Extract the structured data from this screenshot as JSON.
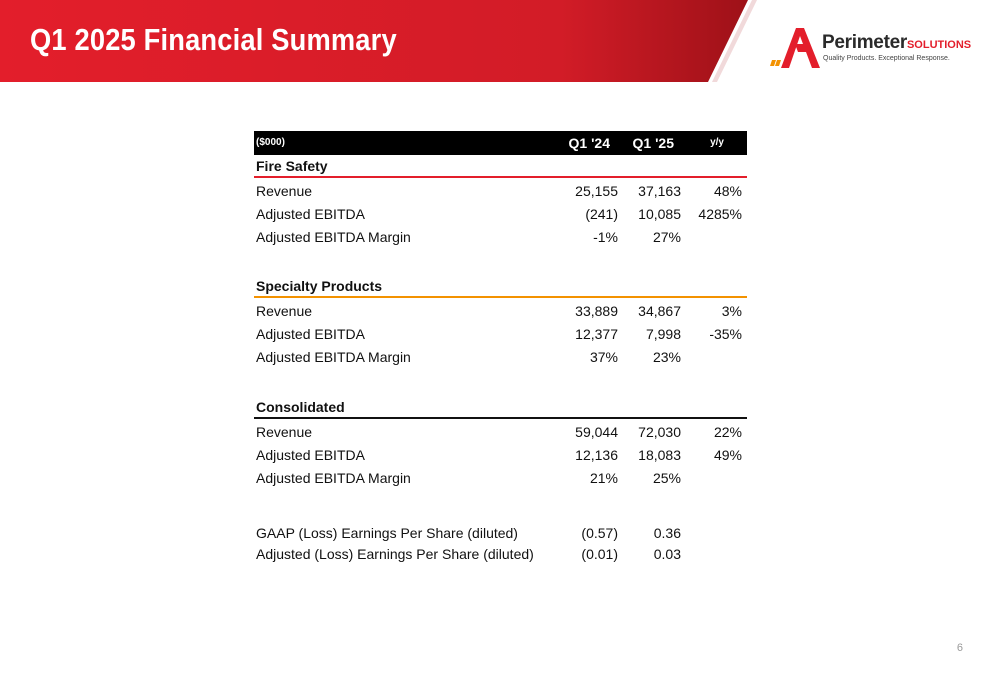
{
  "header": {
    "title": "Q1 2025 Financial Summary",
    "banner_color": "#e31e2b"
  },
  "logo": {
    "name": "Perimeter",
    "suffix": "SOLUTIONS",
    "tagline": "Quality Products. Exceptional Response.",
    "icon": "perimeter-logo-mark",
    "accent": "#e31e2b",
    "accent2": "#f39200"
  },
  "table": {
    "headers": {
      "unit": "($000)",
      "col1": "Q1 '24",
      "col2": "Q1 '25",
      "col3": "y/y"
    },
    "sections": [
      {
        "name": "Fire Safety",
        "rule_color": "#e31e2b",
        "rows": [
          {
            "label": "Revenue",
            "q1_24": "25,155",
            "q1_25": "37,163",
            "yy": "48%"
          },
          {
            "label": "Adjusted EBITDA",
            "q1_24": "(241)",
            "q1_25": "10,085",
            "yy": "4285%"
          },
          {
            "label": "Adjusted EBITDA Margin",
            "q1_24": "-1%",
            "q1_25": "27%",
            "yy": ""
          }
        ]
      },
      {
        "name": "Specialty Products",
        "rule_color": "#f39200",
        "rows": [
          {
            "label": "Revenue",
            "q1_24": "33,889",
            "q1_25": "34,867",
            "yy": "3%"
          },
          {
            "label": "Adjusted EBITDA",
            "q1_24": "12,377",
            "q1_25": "7,998",
            "yy": "-35%"
          },
          {
            "label": "Adjusted EBITDA Margin",
            "q1_24": "37%",
            "q1_25": "23%",
            "yy": ""
          }
        ]
      },
      {
        "name": "Consolidated",
        "rule_color": "#111111",
        "rows": [
          {
            "label": "Revenue",
            "q1_24": "59,044",
            "q1_25": "72,030",
            "yy": "22%"
          },
          {
            "label": "Adjusted EBITDA",
            "q1_24": "12,136",
            "q1_25": "18,083",
            "yy": "49%"
          },
          {
            "label": "Adjusted EBITDA Margin",
            "q1_24": "21%",
            "q1_25": "25%",
            "yy": ""
          }
        ]
      }
    ],
    "eps": [
      {
        "label": "GAAP (Loss) Earnings Per Share (diluted)",
        "q1_24": "(0.57)",
        "q1_25": "0.36"
      },
      {
        "label": "Adjusted (Loss) Earnings Per Share (diluted)",
        "q1_24": "(0.01)",
        "q1_25": "0.03"
      }
    ]
  },
  "page_number": "6"
}
